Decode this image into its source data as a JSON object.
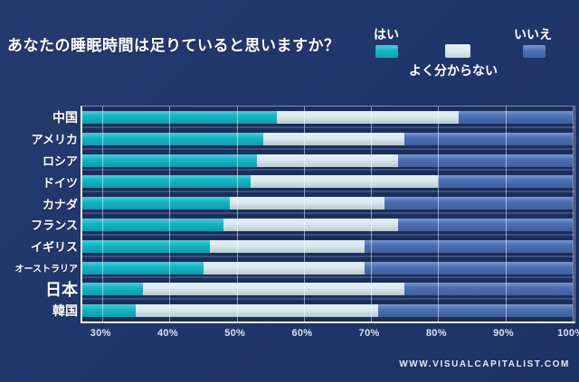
{
  "title": "あなたの睡眠時間は足りていると思いますか？",
  "legend": [
    {
      "id": "yes",
      "label": "はい",
      "color": "#12b6c5"
    },
    {
      "id": "dk",
      "label": "よく分からない",
      "color": "#d9eaf1"
    },
    {
      "id": "no",
      "label": "いいえ",
      "color": "#4a6fb5"
    }
  ],
  "footer": "WWW.VISUALCAPITALIST.COM",
  "colors": {
    "background": "#20356a",
    "plot_background": "#1b2e5c",
    "gridline": "rgba(255,255,255,0.5)",
    "axis_border": "#eef3f8",
    "text": "#ffffff"
  },
  "chart_data": {
    "type": "bar",
    "orientation": "horizontal",
    "stacked": true,
    "title": "あなたの睡眠時間は足りていると思いますか？",
    "categories": [
      "中国",
      "アメリカ",
      "ロシア",
      "ドイツ",
      "カナダ",
      "フランス",
      "イギリス",
      "オーストラリア",
      "日本",
      "韓国"
    ],
    "series": [
      {
        "name": "はい",
        "color": "#12b6c5",
        "values": [
          56,
          54,
          53,
          52,
          49,
          48,
          46,
          45,
          36,
          35
        ]
      },
      {
        "name": "よく分からない",
        "color": "#d9eaf1",
        "values": [
          27,
          21,
          21,
          28,
          23,
          26,
          23,
          24,
          39,
          36
        ]
      },
      {
        "name": "いいえ",
        "color": "#4a6fb5",
        "values": [
          17,
          25,
          26,
          20,
          28,
          26,
          31,
          31,
          25,
          29
        ]
      }
    ],
    "x_ticks": [
      {
        "label": "30%",
        "value": 30
      },
      {
        "label": "40%",
        "value": 40
      },
      {
        "label": "50%",
        "value": 50
      },
      {
        "label": "60%",
        "value": 60
      },
      {
        "label": "70%",
        "value": 70
      },
      {
        "label": "80%",
        "value": 80
      },
      {
        "label": "90%",
        "value": 90
      },
      {
        "label": "100%",
        "value": 100
      }
    ],
    "xlim": [
      27,
      100.3
    ],
    "grid": true,
    "legend_position": "top-right",
    "units": "percent"
  }
}
